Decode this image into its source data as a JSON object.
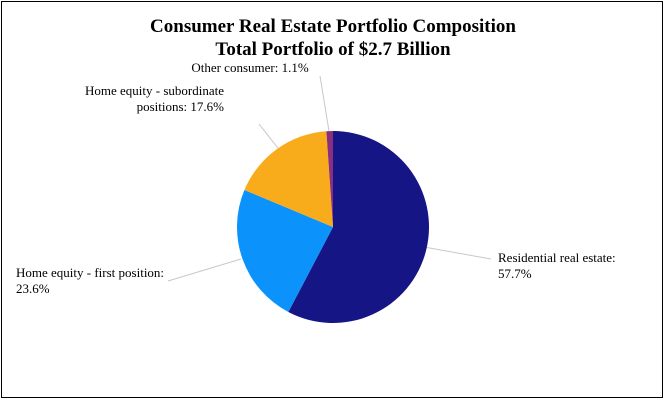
{
  "chart_data": {
    "type": "pie",
    "title": "Consumer Real Estate Portfolio Composition",
    "subtitle": "Total Portfolio of $2.7 Billion",
    "start_angle_deg": 0,
    "direction": "clockwise",
    "slices": [
      {
        "name": "Residential real estate",
        "value": 57.7,
        "label_lines": [
          "Residential real estate:",
          "57.7%"
        ],
        "color": "#151585"
      },
      {
        "name": "Home equity - first position",
        "value": 23.6,
        "label_lines": [
          "Home equity - first position:",
          "23.6%"
        ],
        "color": "#0b93fb"
      },
      {
        "name": "Home equity - subordinate positions",
        "value": 17.6,
        "label_lines": [
          "Home equity - subordinate",
          "positions: 17.6%"
        ],
        "color": "#f8ac1c"
      },
      {
        "name": "Other consumer",
        "value": 1.1,
        "label_lines": [
          "Other consumer: 1.1%"
        ],
        "color": "#8a2f7e"
      }
    ],
    "legend": "none",
    "label_style": "outside-with-leader-lines"
  }
}
